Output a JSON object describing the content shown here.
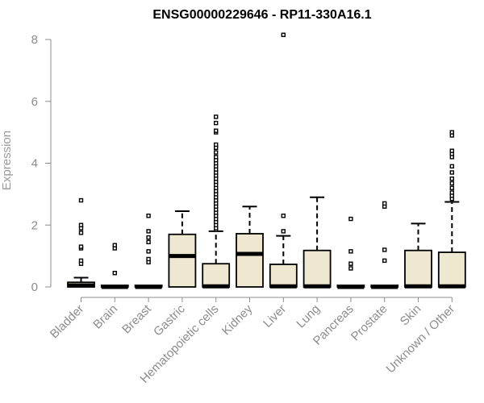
{
  "chart_data": {
    "type": "box",
    "title": "ENSG00000229646 - RP11-330A16.1",
    "xlabel": "",
    "ylabel": "Expression",
    "ylim": [
      0,
      8.2
    ],
    "yticks": [
      0,
      2,
      4,
      6,
      8
    ],
    "grid": false,
    "box_fill": "#efe8d0",
    "categories": [
      "Bladder",
      "Brain",
      "Breast",
      "Gastric",
      "Hematopoietic cells",
      "Kidney",
      "Liver",
      "Lung",
      "Pancreas",
      "Prostate",
      "Skin",
      "Unknown / Other"
    ],
    "boxes": [
      {
        "q1": 0,
        "median": 0.05,
        "q3": 0.15,
        "whisker_low": 0,
        "whisker_high": 0.3,
        "outliers": [
          0.75,
          0.85,
          1.25,
          1.3,
          1.75,
          1.9,
          2.0,
          2.8
        ]
      },
      {
        "q1": 0,
        "median": 0,
        "q3": 0.02,
        "whisker_low": 0,
        "whisker_high": 0.02,
        "outliers": [
          0.45,
          1.25,
          1.35
        ]
      },
      {
        "q1": 0,
        "median": 0,
        "q3": 0.02,
        "whisker_low": 0,
        "whisker_high": 0.02,
        "outliers": [
          0.8,
          0.9,
          1.15,
          1.45,
          1.6,
          1.8,
          2.3
        ]
      },
      {
        "q1": 0,
        "median": 1.0,
        "q3": 1.7,
        "whisker_low": 0,
        "whisker_high": 2.45,
        "outliers": []
      },
      {
        "q1": 0,
        "median": 0.02,
        "q3": 0.75,
        "whisker_low": 0,
        "whisker_high": 1.8,
        "outliers": [
          1.85,
          1.9,
          2.0,
          2.1,
          2.2,
          2.3,
          2.4,
          2.5,
          2.6,
          2.7,
          2.8,
          2.9,
          3.0,
          3.1,
          3.2,
          3.3,
          3.4,
          3.5,
          3.6,
          3.7,
          3.8,
          3.9,
          4.0,
          4.1,
          4.2,
          4.35,
          4.5,
          4.6,
          5.0,
          5.05,
          5.3,
          5.5
        ]
      },
      {
        "q1": 0,
        "median": 1.07,
        "q3": 1.72,
        "whisker_low": 0,
        "whisker_high": 2.6,
        "outliers": []
      },
      {
        "q1": 0,
        "median": 0.02,
        "q3": 0.73,
        "whisker_low": 0,
        "whisker_high": 1.65,
        "outliers": [
          1.8,
          2.3,
          8.15
        ]
      },
      {
        "q1": 0,
        "median": 0.02,
        "q3": 1.18,
        "whisker_low": 0,
        "whisker_high": 2.9,
        "outliers": []
      },
      {
        "q1": 0,
        "median": 0,
        "q3": 0.02,
        "whisker_low": 0,
        "whisker_high": 0.02,
        "outliers": [
          0.6,
          0.75,
          1.15,
          2.2
        ]
      },
      {
        "q1": 0,
        "median": 0,
        "q3": 0.02,
        "whisker_low": 0,
        "whisker_high": 0.02,
        "outliers": [
          0.85,
          1.2,
          2.6,
          2.7
        ]
      },
      {
        "q1": 0,
        "median": 0.02,
        "q3": 1.18,
        "whisker_low": 0,
        "whisker_high": 2.05,
        "outliers": []
      },
      {
        "q1": 0,
        "median": 0.02,
        "q3": 1.12,
        "whisker_low": 0,
        "whisker_high": 2.75,
        "outliers": [
          2.85,
          2.95,
          3.05,
          3.2,
          3.35,
          3.5,
          3.7,
          3.9,
          4.2,
          4.3,
          4.4,
          4.9,
          5.0
        ]
      }
    ]
  }
}
